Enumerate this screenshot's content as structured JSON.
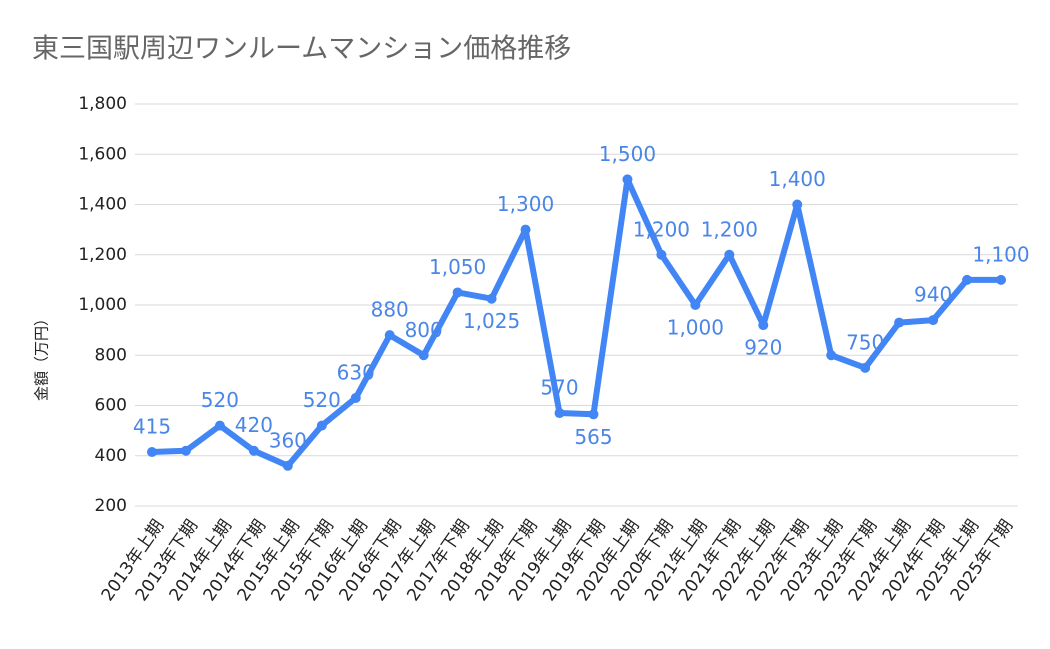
{
  "chart_data": {
    "type": "line",
    "title": "東三国駅周辺ワンルームマンション価格推移",
    "y_axis_label": "金額（万円）",
    "categories": [
      "2013年上期",
      "2013年下期",
      "2014年上期",
      "2014年下期",
      "2015年上期",
      "2015年下期",
      "2016年上期",
      "2016年下期",
      "2017年上期",
      "2017年下期",
      "2018年上期",
      "2018年下期",
      "2019年上期",
      "2019年下期",
      "2020年上期",
      "2020年下期",
      "2021年上期",
      "2021年下期",
      "2022年上期",
      "2022年下期",
      "2023年上期",
      "2023年下期",
      "2024年上期",
      "2024年下期",
      "2025年上期",
      "2025年下期"
    ],
    "values": [
      415,
      420,
      520,
      420,
      360,
      520,
      630,
      880,
      800,
      1050,
      1025,
      1300,
      570,
      565,
      1500,
      1200,
      1000,
      1200,
      920,
      1400,
      800,
      750,
      930,
      940,
      1100,
      1100
    ],
    "value_labels": [
      "415",
      null,
      "520",
      "420",
      "360",
      "520",
      "630",
      "880",
      "800",
      "1,050",
      "1,025",
      "1,300",
      "570",
      "565",
      "1,500",
      "1,200",
      "1,000",
      "1,200",
      "920",
      "1,400",
      null,
      "750",
      null,
      "940",
      null,
      "1,100"
    ],
    "color": "#4285f4",
    "ylim": [
      200,
      1800
    ],
    "yticks": [
      200,
      400,
      600,
      800,
      {
        "value": 1000,
        "label": "1,000"
      },
      {
        "value": 1200,
        "label": "1,200"
      },
      {
        "value": 1400,
        "label": "1,400"
      },
      {
        "value": 1600,
        "label": "1,600"
      },
      {
        "value": 1800,
        "label": "1,800"
      }
    ],
    "grid": true
  }
}
